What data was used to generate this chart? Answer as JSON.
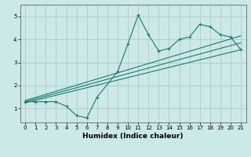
{
  "title": "",
  "xlabel": "Humidex (Indice chaleur)",
  "bg_color": "#cce8e8",
  "grid_color": "#b0d0d0",
  "line_color": "#1a7a6e",
  "xlim": [
    -0.5,
    21.5
  ],
  "ylim": [
    0.4,
    5.5
  ],
  "xticks": [
    0,
    1,
    2,
    3,
    4,
    5,
    6,
    7,
    8,
    9,
    10,
    11,
    12,
    13,
    14,
    15,
    16,
    17,
    18,
    19,
    20,
    21
  ],
  "yticks": [
    1,
    2,
    3,
    4,
    5
  ],
  "jagged_x": [
    0,
    1,
    2,
    3,
    4,
    5,
    6,
    7,
    9,
    10,
    11,
    12,
    13,
    14,
    15,
    16,
    17,
    18,
    19,
    20,
    21
  ],
  "jagged_y": [
    1.3,
    1.3,
    1.3,
    1.3,
    1.1,
    0.7,
    0.6,
    1.5,
    2.6,
    3.8,
    5.05,
    4.2,
    3.5,
    3.6,
    4.0,
    4.1,
    4.65,
    4.55,
    4.2,
    4.1,
    3.55
  ],
  "line1_x": [
    0,
    21
  ],
  "line1_y": [
    1.25,
    3.55
  ],
  "line2_x": [
    0,
    21
  ],
  "line2_y": [
    1.3,
    3.85
  ],
  "line3_x": [
    0,
    21
  ],
  "line3_y": [
    1.35,
    4.15
  ]
}
